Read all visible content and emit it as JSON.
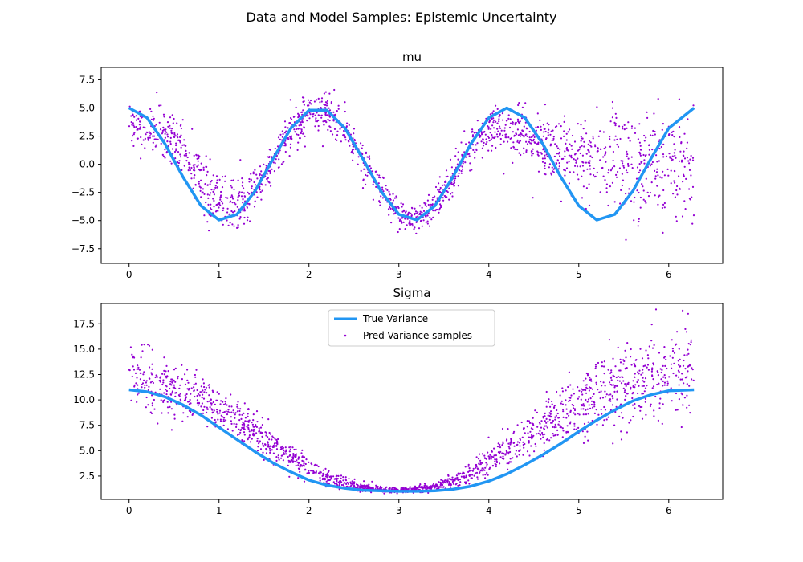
{
  "figure": {
    "title": "Data and Model Samples: Epistemic Uncertainty"
  },
  "colors": {
    "line": "#2196f3",
    "points": "#9400d3",
    "axes": "#000000"
  },
  "chart_data": [
    {
      "type": "scatter",
      "title": "mu",
      "xlabel": "",
      "ylabel": "",
      "xlim": [
        -0.31,
        6.6
      ],
      "ylim": [
        -8.8,
        8.6
      ],
      "xticks": [
        0,
        1,
        2,
        3,
        4,
        5,
        6
      ],
      "yticks": [
        -7.5,
        -5.0,
        -2.5,
        0.0,
        2.5,
        5.0,
        7.5
      ],
      "ytick_labels": [
        "−7.5",
        "−5.0",
        "−2.5",
        "0.0",
        "2.5",
        "5.0",
        "7.5"
      ],
      "grid": false,
      "series": [
        {
          "kind": "line",
          "color": "#2196f3",
          "x": [
            0,
            0.2,
            0.4,
            0.6,
            0.8,
            1.0,
            1.2,
            1.4,
            1.6,
            1.8,
            2.0,
            2.2,
            2.4,
            2.6,
            2.8,
            3.0,
            3.2,
            3.4,
            3.6,
            3.8,
            4.0,
            4.2,
            4.4,
            4.6,
            4.8,
            5.0,
            5.2,
            5.4,
            5.6,
            5.8,
            6.0,
            6.28
          ],
          "y": [
            5.0,
            4.13,
            1.81,
            -1.13,
            -3.69,
            -4.95,
            -4.45,
            -2.39,
            0.47,
            3.2,
            4.8,
            4.8,
            3.2,
            0.47,
            -2.39,
            -4.45,
            -4.95,
            -3.69,
            -1.13,
            1.81,
            4.13,
            5.0,
            4.13,
            1.81,
            -1.13,
            -3.69,
            -4.95,
            -4.45,
            -2.39,
            0.47,
            3.2,
            5.0
          ]
        },
        {
          "kind": "scatter",
          "color": "#9400d3",
          "x": [
            0,
            0.2,
            0.4,
            0.6,
            0.8,
            1.0,
            1.2,
            1.4,
            1.6,
            1.8,
            2.0,
            2.2,
            2.4,
            2.6,
            2.8,
            3.0,
            3.2,
            3.4,
            3.6,
            3.8,
            4.0,
            4.2,
            4.4,
            4.6,
            4.8,
            5.0,
            5.2,
            5.4,
            5.6,
            5.8,
            6.0,
            6.28
          ],
          "center": [
            3.4,
            3.2,
            2.4,
            1.0,
            -1.2,
            -3.0,
            -3.6,
            -2.2,
            0.3,
            3.0,
            4.7,
            4.8,
            3.3,
            0.4,
            -2.3,
            -4.5,
            -4.9,
            -3.6,
            -1.2,
            1.5,
            3.2,
            3.3,
            2.6,
            1.8,
            1.0,
            0.6,
            0.3,
            0.3,
            0.2,
            0.2,
            0.1,
            0.0
          ],
          "spread": [
            1.0,
            1.0,
            1.1,
            1.2,
            1.3,
            1.3,
            1.2,
            1.0,
            0.9,
            0.9,
            0.9,
            0.8,
            0.8,
            0.8,
            0.7,
            0.6,
            0.6,
            0.6,
            0.7,
            0.8,
            0.9,
            1.0,
            1.2,
            1.4,
            1.6,
            1.8,
            2.0,
            2.1,
            2.2,
            2.3,
            2.4,
            2.5
          ]
        }
      ]
    },
    {
      "type": "scatter",
      "title": "Sigma",
      "xlabel": "",
      "ylabel": "",
      "xlim": [
        -0.31,
        6.6
      ],
      "ylim": [
        0.2,
        19.5
      ],
      "xticks": [
        0,
        1,
        2,
        3,
        4,
        5,
        6
      ],
      "yticks": [
        2.5,
        5.0,
        7.5,
        10.0,
        12.5,
        15.0,
        17.5
      ],
      "ytick_labels": [
        "2.5",
        "5.0",
        "7.5",
        "10.0",
        "12.5",
        "15.0",
        "17.5"
      ],
      "grid": false,
      "legend": {
        "placement": "top-center",
        "entries": [
          "True Variance",
          "Pred Variance samples"
        ]
      },
      "series": [
        {
          "name": "True Variance",
          "kind": "line",
          "color": "#2196f3",
          "x": [
            0,
            0.2,
            0.4,
            0.6,
            0.8,
            1.0,
            1.2,
            1.4,
            1.6,
            1.8,
            2.0,
            2.2,
            2.4,
            2.6,
            2.8,
            3.0,
            3.2,
            3.4,
            3.6,
            3.8,
            4.0,
            4.2,
            4.4,
            4.6,
            4.8,
            5.0,
            5.2,
            5.4,
            5.6,
            5.8,
            6.0,
            6.28
          ],
          "y": [
            11.0,
            10.8,
            10.3,
            9.5,
            8.5,
            7.3,
            6.1,
            4.9,
            3.8,
            2.9,
            2.1,
            1.6,
            1.3,
            1.1,
            1.05,
            1.0,
            1.0,
            1.05,
            1.2,
            1.5,
            2.0,
            2.7,
            3.6,
            4.6,
            5.7,
            6.9,
            8.0,
            9.0,
            9.9,
            10.5,
            10.9,
            11.0
          ]
        },
        {
          "name": "Pred Variance samples",
          "kind": "scatter",
          "color": "#9400d3",
          "x": [
            0,
            0.2,
            0.4,
            0.6,
            0.8,
            1.0,
            1.2,
            1.4,
            1.6,
            1.8,
            2.0,
            2.2,
            2.4,
            2.6,
            2.8,
            3.0,
            3.2,
            3.4,
            3.6,
            3.8,
            4.0,
            4.2,
            4.4,
            4.6,
            4.8,
            5.0,
            5.2,
            5.4,
            5.6,
            5.8,
            6.0,
            6.28
          ],
          "center": [
            12.5,
            11.9,
            11.2,
            10.6,
            10.0,
            9.0,
            8.0,
            6.8,
            5.5,
            4.3,
            3.2,
            2.4,
            1.8,
            1.4,
            1.2,
            1.1,
            1.2,
            1.4,
            2.0,
            2.8,
            3.8,
            5.0,
            6.2,
            7.4,
            8.5,
            9.6,
            10.5,
            11.2,
            11.8,
            12.2,
            12.6,
            13.0
          ],
          "spread": [
            1.6,
            1.5,
            1.4,
            1.3,
            1.2,
            1.1,
            1.0,
            0.9,
            0.8,
            0.6,
            0.5,
            0.4,
            0.3,
            0.2,
            0.15,
            0.15,
            0.15,
            0.2,
            0.3,
            0.5,
            0.7,
            0.9,
            1.1,
            1.3,
            1.5,
            1.6,
            1.7,
            1.8,
            1.9,
            2.0,
            2.1,
            2.2
          ]
        }
      ]
    }
  ]
}
